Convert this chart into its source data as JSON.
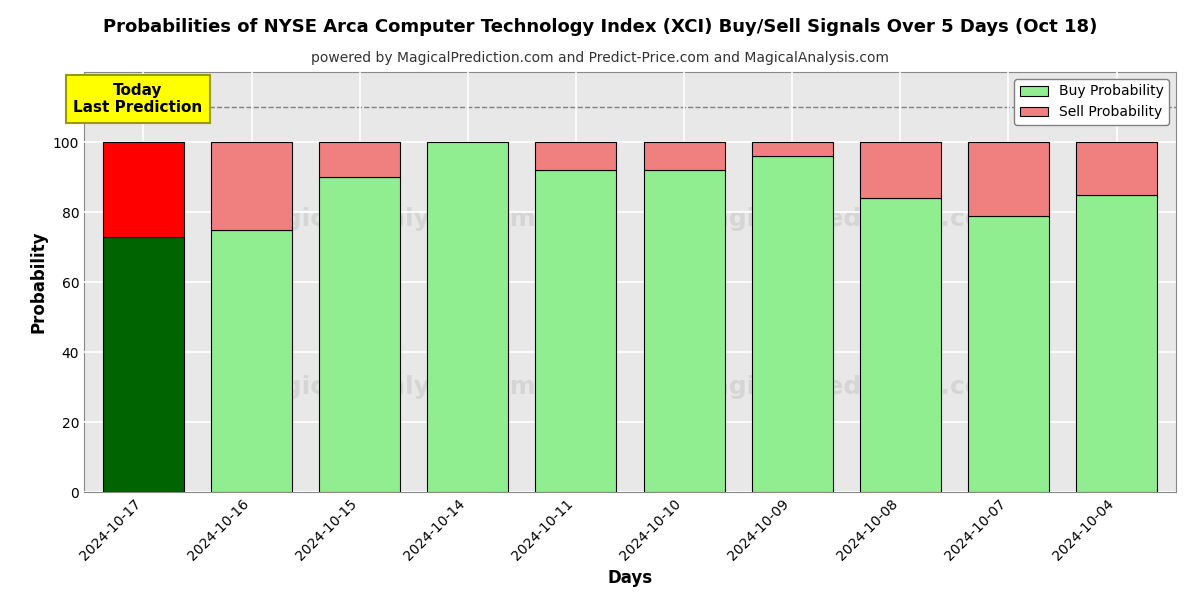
{
  "title": "Probabilities of NYSE Arca Computer Technology Index (XCI) Buy/Sell Signals Over 5 Days (Oct 18)",
  "subtitle": "powered by MagicalPrediction.com and Predict-Price.com and MagicalAnalysis.com",
  "xlabel": "Days",
  "ylabel": "Probability",
  "dates": [
    "2024-10-17",
    "2024-10-16",
    "2024-10-15",
    "2024-10-14",
    "2024-10-11",
    "2024-10-10",
    "2024-10-09",
    "2024-10-08",
    "2024-10-07",
    "2024-10-04"
  ],
  "buy_values": [
    73,
    75,
    90,
    100,
    92,
    92,
    96,
    84,
    79,
    85
  ],
  "sell_values": [
    27,
    25,
    10,
    0,
    8,
    8,
    4,
    16,
    21,
    15
  ],
  "today_buy_color": "#006400",
  "today_sell_color": "#FF0000",
  "buy_color": "#90EE90",
  "sell_color": "#F08080",
  "today_annotation_bg": "#FFFF00",
  "today_annotation_text": "Today\nLast Prediction",
  "dashed_line_y": 110,
  "ylim": [
    0,
    120
  ],
  "yticks": [
    0,
    20,
    40,
    60,
    80,
    100
  ],
  "legend_buy_label": "Buy Probability",
  "legend_sell_label": "Sell Probability",
  "bar_edge_color": "#000000",
  "bar_linewidth": 0.8,
  "background_color": "#FFFFFF",
  "grid_color": "#FFFFFF",
  "plot_bg_color": "#E8E8E8"
}
